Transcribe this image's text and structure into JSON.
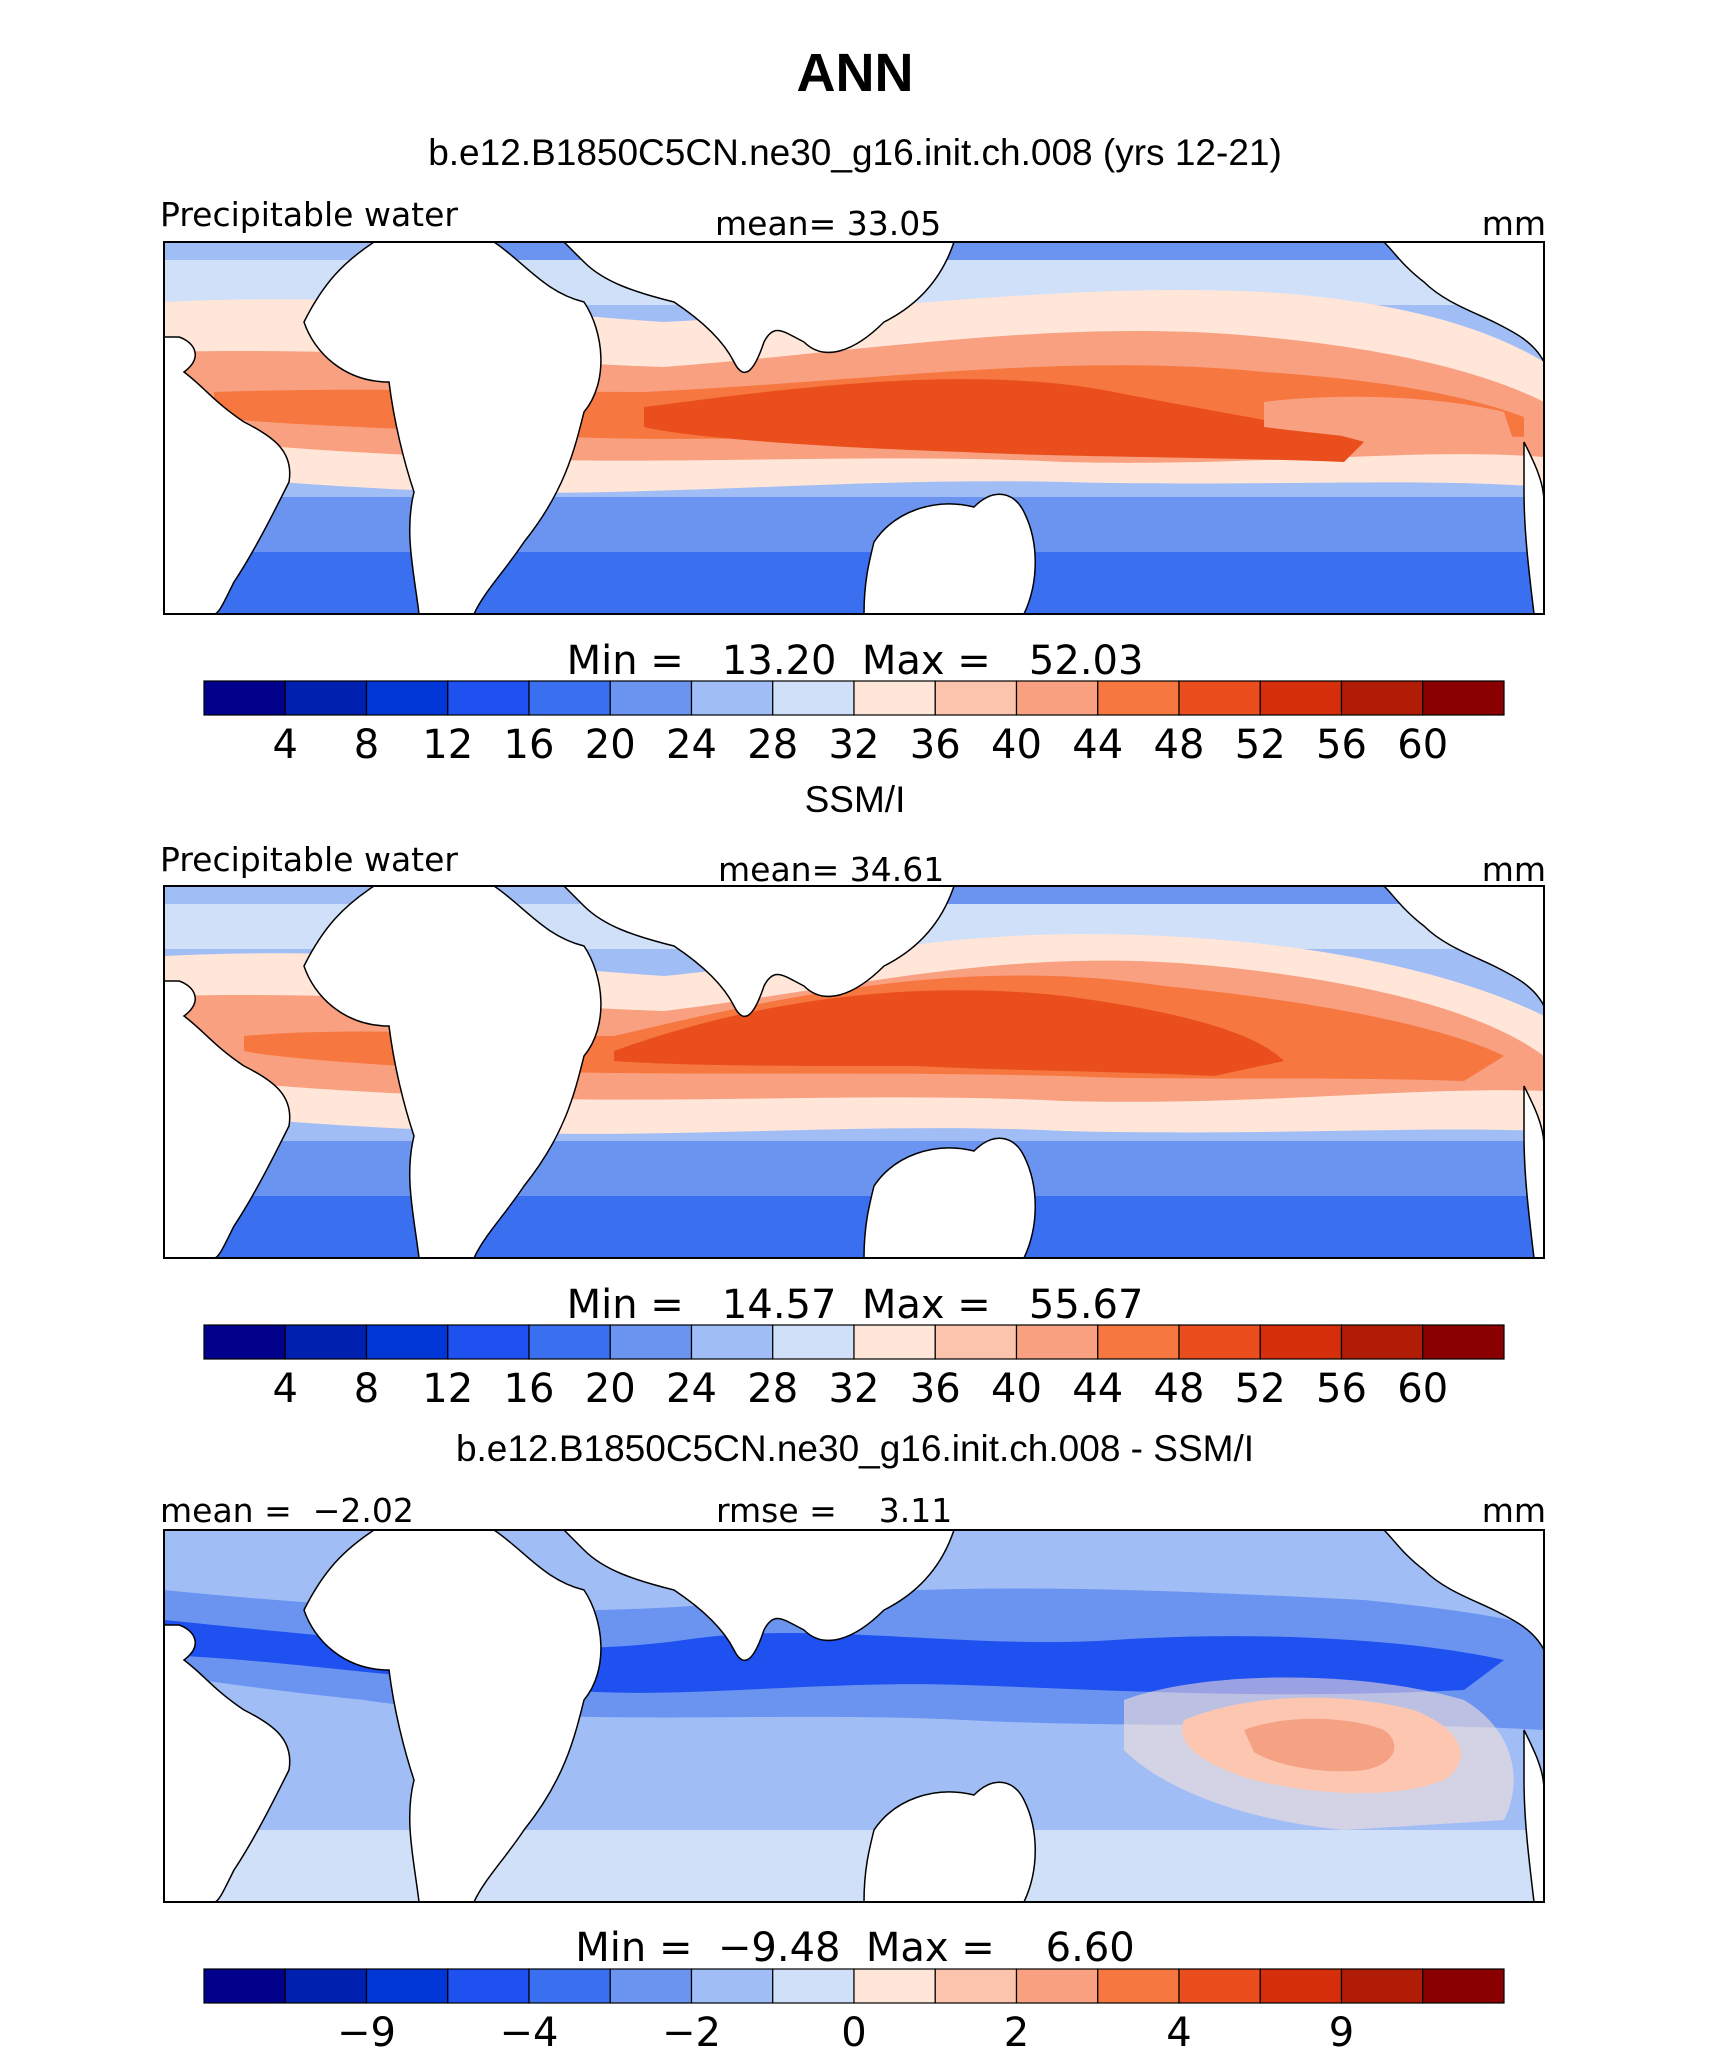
{
  "figure": {
    "title": "ANN"
  },
  "panels": [
    {
      "id": "model",
      "heading": "b.e12.B1850C5CN.ne30_g16.init.ch.008 (yrs 12-21)",
      "left_label": "Precipitable water",
      "center_label": "mean=  33.05",
      "right_label": "mm",
      "minmax_label": "Min =   13.20  Max =   52.03",
      "colorbar_ticks": [
        "4",
        "8",
        "12",
        "16",
        "20",
        "24",
        "28",
        "32",
        "36",
        "40",
        "44",
        "48",
        "52",
        "56",
        "60"
      ]
    },
    {
      "id": "obs",
      "heading": "SSM/I",
      "left_label": "Precipitable water",
      "center_label": "mean=  34.61",
      "right_label": "mm",
      "minmax_label": "Min =   14.57  Max =   55.67",
      "colorbar_ticks": [
        "4",
        "8",
        "12",
        "16",
        "20",
        "24",
        "28",
        "32",
        "36",
        "40",
        "44",
        "48",
        "52",
        "56",
        "60"
      ]
    },
    {
      "id": "diff",
      "heading": "b.e12.B1850C5CN.ne30_g16.init.ch.008 - SSM/I",
      "left_label": "mean =  −2.02",
      "center_label": "rmse =    3.11",
      "right_label": "mm",
      "minmax_label": "Min =  −9.48  Max =    6.60",
      "colorbar_ticks": [
        "",
        "−9",
        "",
        "−4",
        "",
        "−2",
        "",
        "0",
        "",
        "2",
        "",
        "4",
        "",
        "9",
        ""
      ]
    }
  ],
  "colorbar_colors": [
    "#00008b",
    "#0020b0",
    "#0036d6",
    "#1f50f0",
    "#3a6ff0",
    "#6a94f0",
    "#a0bdf5",
    "#cfe0f8",
    "#ffe6d8",
    "#fdc4ad",
    "#f8a080",
    "#f6773f",
    "#e94e1c",
    "#d42e0a",
    "#b01c05",
    "#8a0000"
  ]
}
